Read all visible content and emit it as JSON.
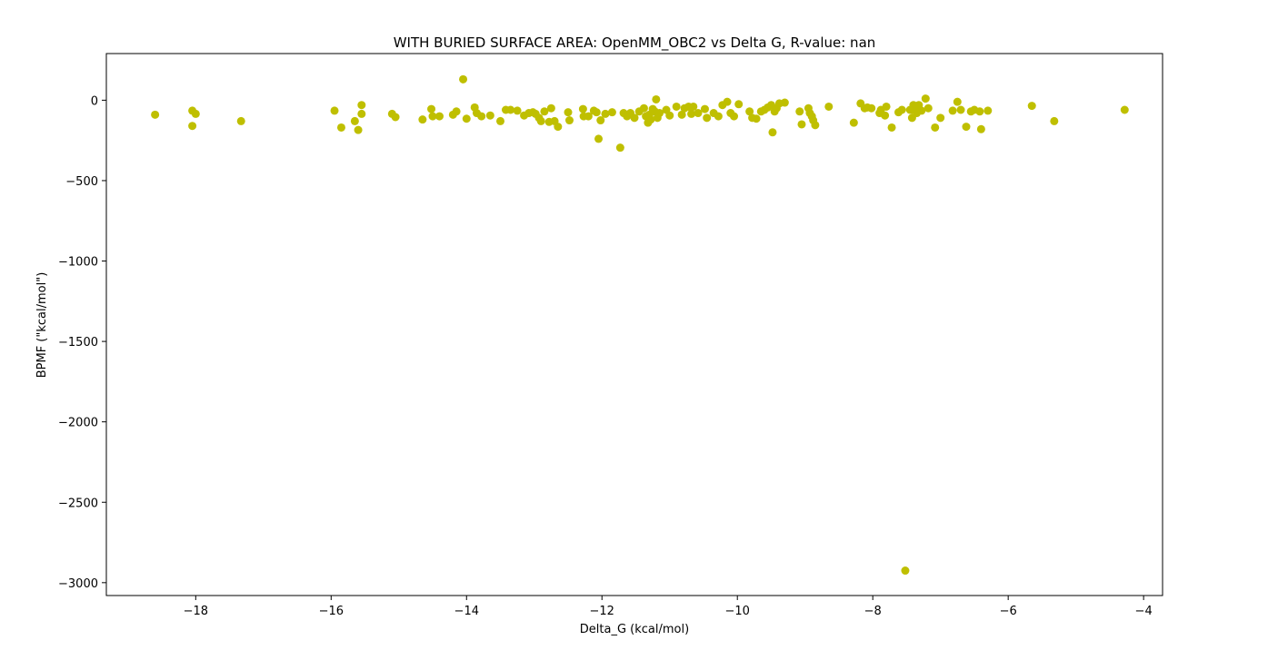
{
  "chart_data": {
    "type": "scatter",
    "title": "WITH BURIED SURFACE AREA: OpenMM_OBC2 vs Delta G, R-value: nan",
    "xlabel": "Delta_G (kcal/mol)",
    "ylabel": "BPMF (\"kcal/mol\")",
    "xlim": [
      -19.32,
      -3.72
    ],
    "ylim": [
      -3080,
      290
    ],
    "xticks": [
      -18,
      -16,
      -14,
      -12,
      -10,
      -8,
      -6,
      -4
    ],
    "xtick_labels": [
      "−18",
      "−16",
      "−14",
      "−12",
      "−10",
      "−8",
      "−6",
      "−4"
    ],
    "yticks": [
      0,
      -500,
      -1000,
      -1500,
      -2000,
      -2500,
      -3000
    ],
    "ytick_labels": [
      "0",
      "−500",
      "−1000",
      "−1500",
      "−2000",
      "−2500",
      "−3000"
    ],
    "marker_color": "#bfbf00",
    "series": [
      {
        "name": "BPMF",
        "x": [
          -18.6,
          -18.05,
          -18.05,
          -18.0,
          -17.33,
          -15.95,
          -15.85,
          -15.65,
          -15.6,
          -15.55,
          -15.55,
          -15.1,
          -15.05,
          -14.65,
          -14.52,
          -14.5,
          -14.4,
          -14.2,
          -14.15,
          -14.05,
          -14.0,
          -13.88,
          -13.85,
          -13.78,
          -13.65,
          -13.5,
          -13.42,
          -13.35,
          -13.25,
          -13.15,
          -13.08,
          -13.02,
          -12.98,
          -12.93,
          -12.9,
          -12.85,
          -12.78,
          -12.75,
          -12.7,
          -12.65,
          -12.5,
          -12.48,
          -12.28,
          -12.27,
          -12.2,
          -12.12,
          -12.08,
          -12.05,
          -12.02,
          -11.95,
          -11.85,
          -11.73,
          -11.68,
          -11.63,
          -11.58,
          -11.52,
          -11.45,
          -11.38,
          -11.35,
          -11.32,
          -11.3,
          -11.28,
          -11.25,
          -11.22,
          -11.2,
          -11.18,
          -11.15,
          -11.05,
          -11.0,
          -10.9,
          -10.82,
          -10.78,
          -10.72,
          -10.68,
          -10.65,
          -10.58,
          -10.48,
          -10.45,
          -10.35,
          -10.28,
          -10.22,
          -10.15,
          -10.1,
          -10.05,
          -9.98,
          -9.82,
          -9.78,
          -9.72,
          -9.65,
          -9.6,
          -9.55,
          -9.5,
          -9.48,
          -9.45,
          -9.42,
          -9.38,
          -9.3,
          -9.08,
          -9.05,
          -8.95,
          -8.93,
          -8.9,
          -8.88,
          -8.85,
          -8.65,
          -8.28,
          -8.18,
          -8.12,
          -8.08,
          -8.02,
          -7.9,
          -7.88,
          -7.82,
          -7.8,
          -7.72,
          -7.62,
          -7.57,
          -7.52,
          -7.45,
          -7.42,
          -7.42,
          -7.4,
          -7.38,
          -7.35,
          -7.32,
          -7.28,
          -7.22,
          -7.18,
          -7.08,
          -7.0,
          -6.82,
          -6.75,
          -6.7,
          -6.62,
          -6.55,
          -6.5,
          -6.42,
          -6.4,
          -6.3,
          -5.65,
          -5.32,
          -4.28
        ],
        "y": [
          -90,
          -65,
          -160,
          -85,
          -130,
          -65,
          -170,
          -130,
          -185,
          -85,
          -30,
          -85,
          -105,
          -120,
          -55,
          -100,
          -100,
          -90,
          -70,
          130,
          -115,
          -45,
          -80,
          -100,
          -95,
          -130,
          -60,
          -60,
          -65,
          -95,
          -80,
          -75,
          -85,
          -110,
          -130,
          -70,
          -135,
          -50,
          -130,
          -165,
          -75,
          -125,
          -55,
          -100,
          -100,
          -65,
          -75,
          -240,
          -125,
          -85,
          -75,
          -295,
          -80,
          -100,
          -80,
          -110,
          -70,
          -50,
          -100,
          -140,
          -90,
          -120,
          -55,
          -70,
          5,
          -110,
          -80,
          -60,
          -95,
          -40,
          -90,
          -50,
          -40,
          -85,
          -40,
          -80,
          -55,
          -110,
          -80,
          -100,
          -30,
          -10,
          -80,
          -100,
          -25,
          -70,
          -110,
          -115,
          -70,
          -60,
          -45,
          -30,
          -200,
          -70,
          -50,
          -20,
          -15,
          -70,
          -150,
          -50,
          -80,
          -100,
          -125,
          -155,
          -40,
          -140,
          -20,
          -50,
          -45,
          -50,
          -80,
          -60,
          -95,
          -40,
          -170,
          -75,
          -60,
          -2925,
          -60,
          -60,
          -110,
          -30,
          -50,
          -80,
          -30,
          -65,
          10,
          -50,
          -170,
          -110,
          -65,
          -10,
          -60,
          -165,
          -70,
          -60,
          -70,
          -180,
          -65,
          -35,
          -130,
          -60
        ]
      }
    ]
  }
}
